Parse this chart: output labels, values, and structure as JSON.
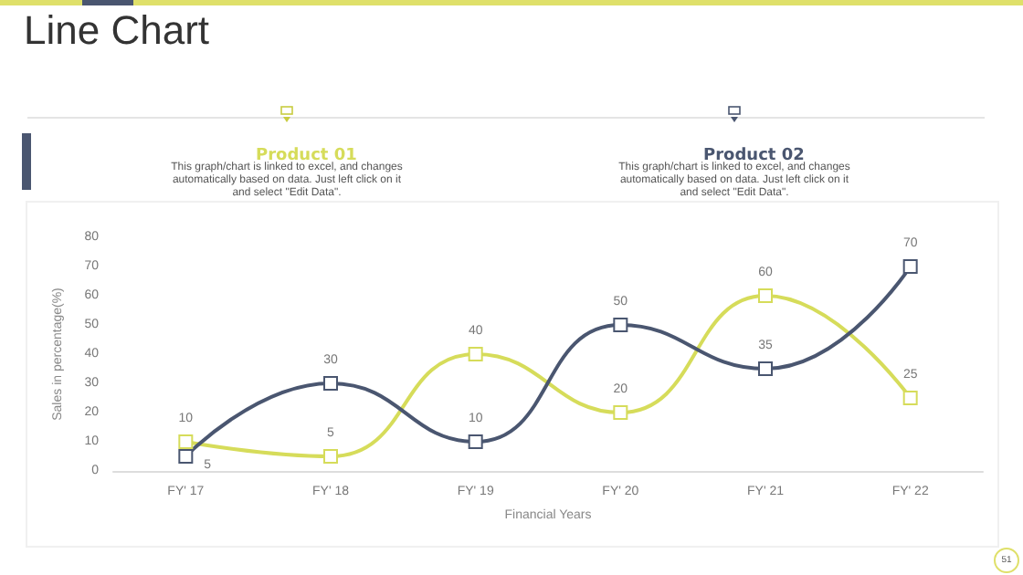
{
  "chart_data": {
    "type": "line",
    "title": "Line Chart",
    "xlabel": "Financial Years",
    "ylabel": "Sales in percentage(%)",
    "categories": [
      "FY' 17",
      "FY' 18",
      "FY' 19",
      "FY' 20",
      "FY' 21",
      "FY' 22"
    ],
    "series": [
      {
        "name": "Product 01",
        "color": "#d6dc5a",
        "values": [
          10,
          5,
          40,
          20,
          60,
          25
        ]
      },
      {
        "name": "Product 02",
        "color": "#4a5670",
        "values": [
          5,
          30,
          10,
          50,
          35,
          70
        ]
      }
    ],
    "ylim": [
      0,
      80
    ],
    "yticks": [
      0,
      10,
      20,
      30,
      40,
      50,
      60,
      70,
      80
    ],
    "grid": false,
    "legend": "top",
    "marker": "square",
    "line_style": "solid",
    "data_labels": true,
    "annotations": [
      "This graph/chart is linked to excel, and changes automatically based on data. Just left click on it and select \"Edit Data\".",
      "This graph/chart is linked to excel, and changes automatically based on data. Just left click on it and select \"Edit Data\".",
      "51"
    ]
  }
}
